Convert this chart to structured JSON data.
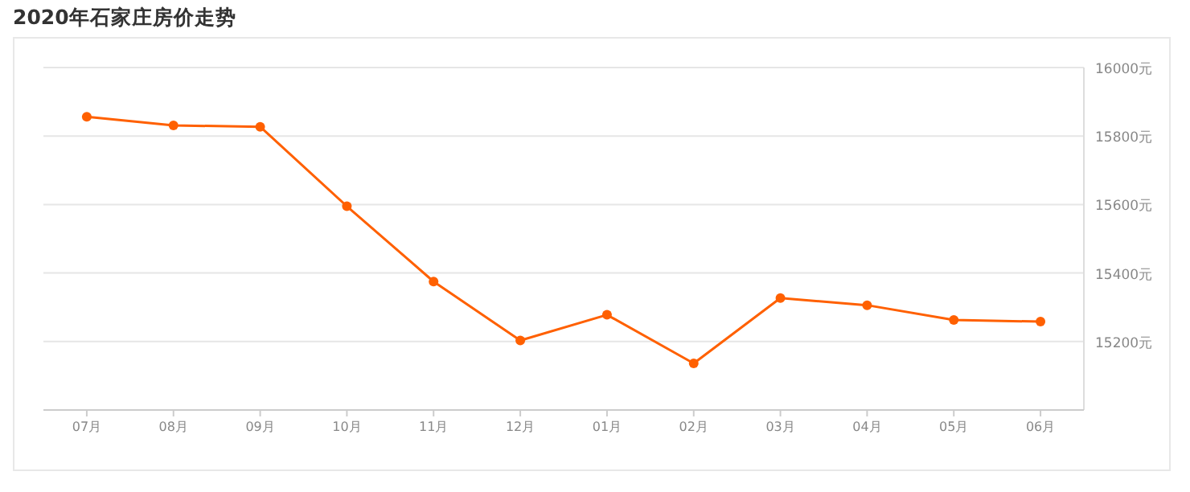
{
  "chart_data": {
    "type": "line",
    "title": "2020年石家庄房价走势",
    "categories": [
      "07月",
      "08月",
      "09月",
      "10月",
      "11月",
      "12月",
      "01月",
      "02月",
      "03月",
      "04月",
      "05月",
      "06月"
    ],
    "series": [
      {
        "color": "#ff6000",
        "values": [
          15856,
          15831,
          15827,
          15595,
          15375,
          15203,
          15278,
          15136,
          15327,
          15306,
          15263,
          15258
        ]
      }
    ],
    "ylim": [
      15000,
      16000
    ],
    "yticks": [
      {
        "value": 15200,
        "label": "15200元"
      },
      {
        "value": 15400,
        "label": "15400元"
      },
      {
        "value": 15600,
        "label": "15600元"
      },
      {
        "value": 15800,
        "label": "15800元"
      },
      {
        "value": 16000,
        "label": "16000元"
      }
    ],
    "grid": "y",
    "marker": "circle",
    "line_style": "solid"
  }
}
